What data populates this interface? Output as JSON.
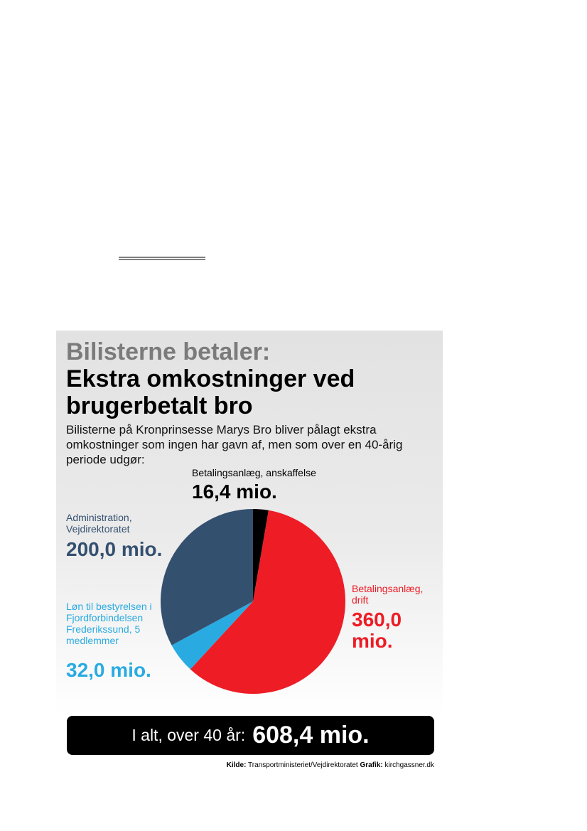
{
  "chart_data": {
    "type": "pie",
    "kicker": "Bilisterne betaler:",
    "title": "Ekstra omkostninger ved brugerbetalt bro",
    "subtitle": "Bilisterne på Kronprinsesse Marys Bro bliver pålagt ekstra omkostninger som ingen har gavn af, men som over en 40-årig periode udgør:",
    "categories": [
      "Betalingsanlæg, anskaffelse",
      "Betalingsanlæg, drift",
      "Løn til bestyrelsen i Fjordforbindelsen Frederikssund, 5 medlemmer",
      "Administration, Vejdirektoratet"
    ],
    "values": [
      16.4,
      360.0,
      32.0,
      200.0
    ],
    "value_labels": [
      "16,4 mio.",
      "360,0 mio.",
      "32,0 mio.",
      "200,0 mio."
    ],
    "colors": [
      "#000000",
      "#ee1c25",
      "#29abe2",
      "#34506f"
    ],
    "total_label": "I alt, over 40 år:",
    "total_value": "608,4 mio.",
    "source_label": "Kilde:",
    "source": "Transportministeriet/Vejdirektoratet",
    "credit_label": "Grafik:",
    "credit": "kirchgassner.dk"
  }
}
